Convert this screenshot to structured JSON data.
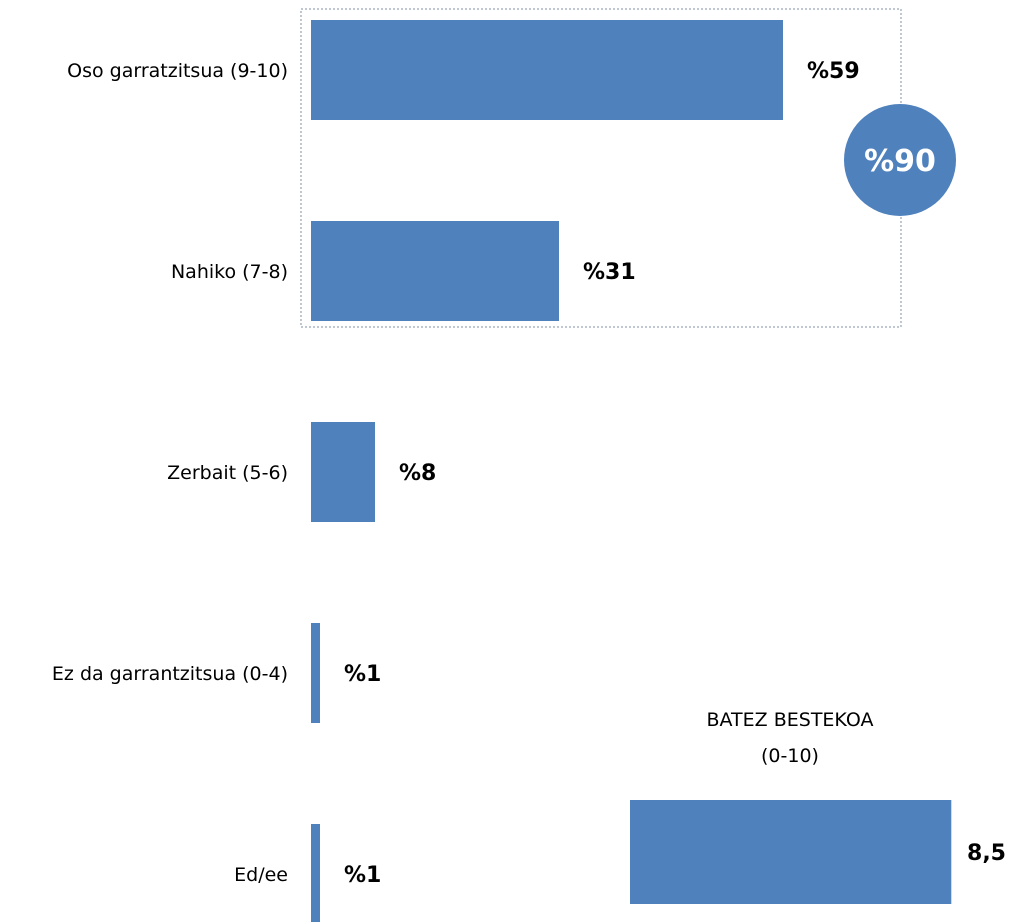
{
  "chart_data": {
    "type": "bar",
    "orientation": "horizontal",
    "categories": [
      "Oso garratzitsua (9-10)",
      "Nahiko (7-8)",
      "Zerbait (5-6)",
      "Ez da garrantzitsua (0-4)",
      "Ed/ee"
    ],
    "values": [
      59,
      31,
      8,
      1,
      1
    ],
    "value_labels": [
      "%59",
      "%31",
      "%8",
      "%1",
      "%1"
    ],
    "bar_color": "#4f81bd",
    "highlight": {
      "label": "%90",
      "value": 90,
      "groups": [
        "Oso garratzitsua (9-10)",
        "Nahiko (7-8)"
      ],
      "color": "#4f81bd"
    },
    "average": {
      "title_line1": "BATEZ BESTEKOA",
      "title_line2": "(0-10)",
      "value": 8.5,
      "value_label": "8,5",
      "xlim": [
        0,
        10
      ],
      "color": "#4f81bd"
    },
    "xlim": [
      0,
      60
    ],
    "grid": false,
    "legend": "none"
  }
}
